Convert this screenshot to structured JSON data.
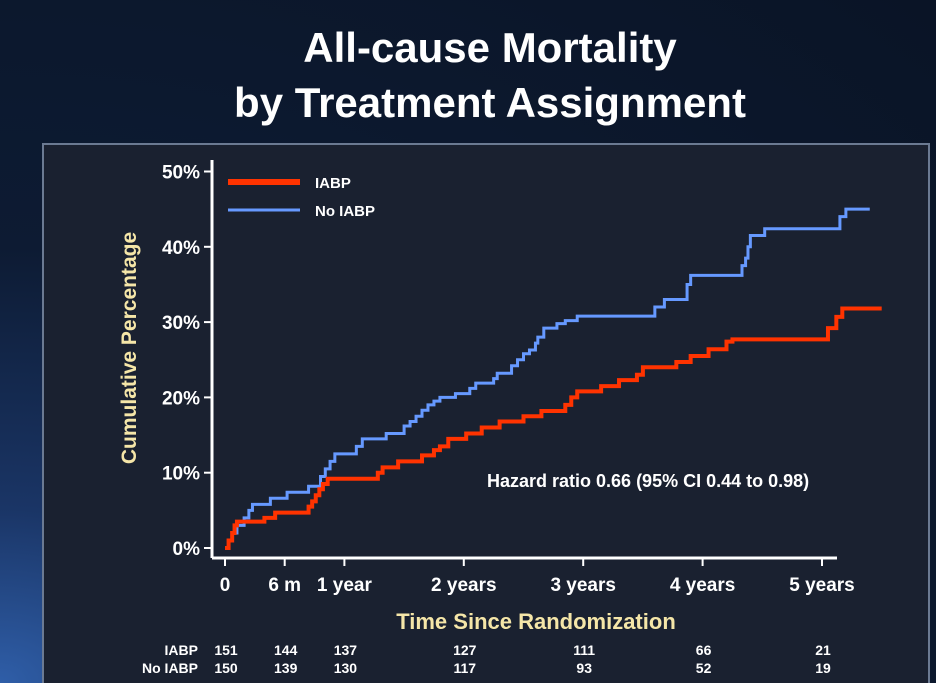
{
  "title": {
    "line1": "All-cause Mortality",
    "line2": "by Treatment Assignment"
  },
  "colors": {
    "iabp": "#ff3300",
    "no_iabp": "#6699ff",
    "axis": "#ffffff",
    "label": "#f5e6a8"
  },
  "annotation": "Hazard ratio 0.66 (95% CI 0.44 to 0.98)",
  "risk_table": {
    "rows": [
      {
        "label": "IABP",
        "values": [
          "151",
          "144",
          "137",
          "127",
          "111",
          "66",
          "21"
        ]
      },
      {
        "label": "No IABP",
        "values": [
          "150",
          "139",
          "130",
          "117",
          "93",
          "52",
          "19"
        ]
      }
    ],
    "x": [
      0,
      0.5,
      1,
      2,
      3,
      4,
      5
    ]
  },
  "chart_data": {
    "type": "line",
    "title": "All-cause Mortality by Treatment Assignment",
    "xlabel": "Time Since Randomization",
    "ylabel": "Cumulative Percentage",
    "xlim": [
      -0.1,
      5.1
    ],
    "ylim": [
      0,
      52
    ],
    "x_ticks": [
      {
        "value": 0,
        "label": "0"
      },
      {
        "value": 0.5,
        "label": "6 m"
      },
      {
        "value": 1,
        "label": "1 year"
      },
      {
        "value": 2,
        "label": "2 years"
      },
      {
        "value": 3,
        "label": "3 years"
      },
      {
        "value": 4,
        "label": "4 years"
      },
      {
        "value": 5,
        "label": "5 years"
      }
    ],
    "y_ticks": [
      {
        "value": 0,
        "label": "0%"
      },
      {
        "value": 10,
        "label": "10%"
      },
      {
        "value": 20,
        "label": "20%"
      },
      {
        "value": 30,
        "label": "30%"
      },
      {
        "value": 40,
        "label": "40%"
      },
      {
        "value": 50,
        "label": "50%"
      }
    ],
    "legend": "top-left",
    "series": [
      {
        "name": "IABP",
        "color": "#ff3300",
        "step": true,
        "points": [
          [
            0,
            0
          ],
          [
            0.03,
            1
          ],
          [
            0.06,
            2
          ],
          [
            0.08,
            3
          ],
          [
            0.1,
            3.5
          ],
          [
            0.3,
            3.5
          ],
          [
            0.33,
            4
          ],
          [
            0.4,
            4
          ],
          [
            0.42,
            4.7
          ],
          [
            0.68,
            4.7
          ],
          [
            0.7,
            5.5
          ],
          [
            0.73,
            6.2
          ],
          [
            0.76,
            7
          ],
          [
            0.79,
            7.8
          ],
          [
            0.82,
            8.5
          ],
          [
            0.86,
            9.2
          ],
          [
            1.25,
            9.2
          ],
          [
            1.28,
            10
          ],
          [
            1.32,
            10.7
          ],
          [
            1.4,
            10.7
          ],
          [
            1.45,
            11.5
          ],
          [
            1.6,
            11.5
          ],
          [
            1.65,
            12.3
          ],
          [
            1.72,
            12.3
          ],
          [
            1.75,
            13
          ],
          [
            1.8,
            13.5
          ],
          [
            1.87,
            14.5
          ],
          [
            2.0,
            14.5
          ],
          [
            2.02,
            15.2
          ],
          [
            2.12,
            15.2
          ],
          [
            2.15,
            16
          ],
          [
            2.25,
            16
          ],
          [
            2.3,
            16.8
          ],
          [
            2.45,
            16.8
          ],
          [
            2.5,
            17.5
          ],
          [
            2.6,
            17.5
          ],
          [
            2.65,
            18.2
          ],
          [
            2.8,
            18.2
          ],
          [
            2.85,
            19
          ],
          [
            2.9,
            20
          ],
          [
            2.95,
            20.8
          ],
          [
            3.1,
            20.8
          ],
          [
            3.15,
            21.5
          ],
          [
            3.25,
            21.5
          ],
          [
            3.3,
            22.3
          ],
          [
            3.42,
            22.3
          ],
          [
            3.45,
            23
          ],
          [
            3.5,
            24
          ],
          [
            3.75,
            24
          ],
          [
            3.78,
            24.7
          ],
          [
            3.85,
            24.7
          ],
          [
            3.9,
            25.5
          ],
          [
            4.0,
            25.5
          ],
          [
            4.05,
            26.4
          ],
          [
            4.15,
            26.4
          ],
          [
            4.2,
            27.4
          ],
          [
            4.25,
            27.7
          ],
          [
            5.0,
            27.7
          ],
          [
            5.05,
            29.2
          ],
          [
            5.12,
            30.7
          ],
          [
            5.17,
            31.8
          ],
          [
            5.5,
            31.8
          ]
        ]
      },
      {
        "name": "No IABP",
        "color": "#6699ff",
        "step": true,
        "points": [
          [
            0,
            0
          ],
          [
            0.03,
            1
          ],
          [
            0.06,
            2
          ],
          [
            0.1,
            3
          ],
          [
            0.16,
            4
          ],
          [
            0.2,
            5
          ],
          [
            0.23,
            5.8
          ],
          [
            0.35,
            5.8
          ],
          [
            0.38,
            6.6
          ],
          [
            0.48,
            6.6
          ],
          [
            0.52,
            7.4
          ],
          [
            0.65,
            7.4
          ],
          [
            0.7,
            8.2
          ],
          [
            0.77,
            8.2
          ],
          [
            0.8,
            9.5
          ],
          [
            0.84,
            10.5
          ],
          [
            0.88,
            11.5
          ],
          [
            0.92,
            12.5
          ],
          [
            1.05,
            12.5
          ],
          [
            1.1,
            13.5
          ],
          [
            1.15,
            14.5
          ],
          [
            1.3,
            14.5
          ],
          [
            1.35,
            15.2
          ],
          [
            1.45,
            15.2
          ],
          [
            1.5,
            16.2
          ],
          [
            1.55,
            16.8
          ],
          [
            1.6,
            17.5
          ],
          [
            1.65,
            18.3
          ],
          [
            1.7,
            19
          ],
          [
            1.75,
            19.5
          ],
          [
            1.8,
            20
          ],
          [
            1.9,
            20
          ],
          [
            1.93,
            20.5
          ],
          [
            2.0,
            20.5
          ],
          [
            2.05,
            21.2
          ],
          [
            2.1,
            21.9
          ],
          [
            2.2,
            21.9
          ],
          [
            2.25,
            22.5
          ],
          [
            2.28,
            23.2
          ],
          [
            2.35,
            23.2
          ],
          [
            2.4,
            24.2
          ],
          [
            2.45,
            25
          ],
          [
            2.5,
            25.8
          ],
          [
            2.55,
            26.3
          ],
          [
            2.6,
            27.2
          ],
          [
            2.62,
            28
          ],
          [
            2.67,
            29.2
          ],
          [
            2.73,
            29.2
          ],
          [
            2.78,
            29.8
          ],
          [
            2.85,
            30.2
          ],
          [
            2.95,
            30.8
          ],
          [
            3.55,
            30.8
          ],
          [
            3.6,
            32
          ],
          [
            3.68,
            33
          ],
          [
            3.82,
            33
          ],
          [
            3.87,
            35
          ],
          [
            3.9,
            36.2
          ],
          [
            4.3,
            36.2
          ],
          [
            4.33,
            37.5
          ],
          [
            4.36,
            38.5
          ],
          [
            4.38,
            40
          ],
          [
            4.4,
            41.5
          ],
          [
            4.47,
            41.5
          ],
          [
            4.52,
            42.4
          ],
          [
            5.1,
            42.4
          ],
          [
            5.15,
            44
          ],
          [
            5.2,
            45
          ],
          [
            5.4,
            45
          ]
        ]
      }
    ]
  }
}
